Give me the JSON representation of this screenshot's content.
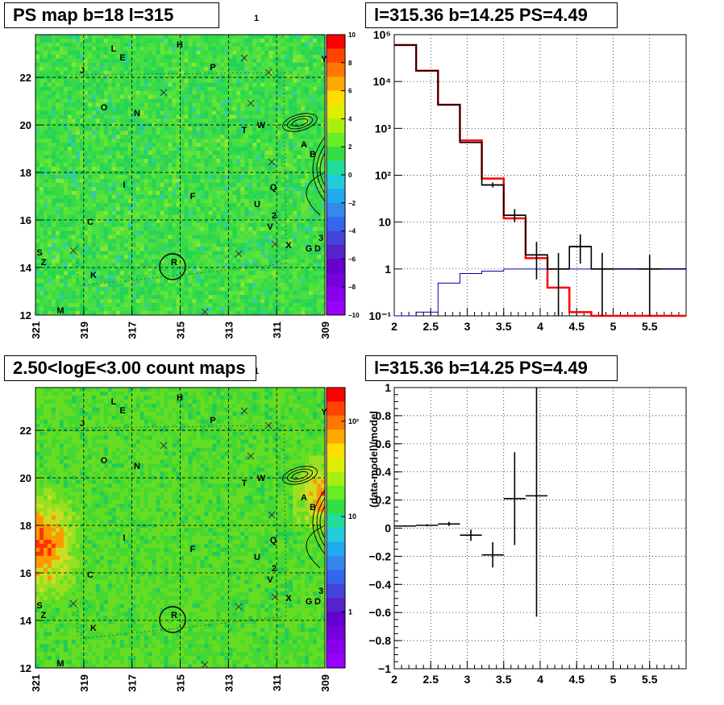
{
  "titles": {
    "top_left": "PS map b=18 l=315",
    "top_right": "l=315.36 b=14.25 PS=4.49",
    "bottom_left": "2.50<logE<3.00 count maps",
    "bottom_right": "l=315.36 b=14.25 PS=4.49"
  },
  "chart_data": [
    {
      "type": "heatmap",
      "name": "ps-map",
      "x_ticks": [
        "321",
        "319",
        "317",
        "315",
        "313",
        "311",
        "309"
      ],
      "y_ticks": [
        "12",
        "14",
        "16",
        "18",
        "20",
        "22"
      ],
      "xlim": [
        321,
        309
      ],
      "ylim": [
        12,
        23.8
      ],
      "colorbar": {
        "ticks": [
          "10",
          "8",
          "6",
          "4",
          "2",
          "0",
          "−2",
          "−4",
          "−6",
          "−8",
          "−10"
        ],
        "range": [
          -10,
          10
        ]
      },
      "labels": [
        "1",
        "H",
        "L",
        "E",
        "J",
        "P",
        "Y",
        "O",
        "N",
        "T",
        "W",
        "A",
        "B",
        "I",
        "F",
        "Q",
        "U",
        "2",
        "C",
        "V",
        "X",
        "3",
        "S",
        "Z",
        "G",
        "D",
        "R",
        "K",
        "M"
      ],
      "grid": true
    },
    {
      "type": "line",
      "name": "spectrum",
      "x_ticks": [
        "2",
        "2.5",
        "3",
        "3.5",
        "4",
        "4.5",
        "5",
        "5.5"
      ],
      "y_ticks": [
        "10⁻¹",
        "1",
        "10",
        "10²",
        "10³",
        "10⁴",
        "10⁵"
      ],
      "xlim": [
        2,
        6
      ],
      "ylim_log10": [
        -1,
        5
      ],
      "series": [
        {
          "color": "#ff0000",
          "edges": [
            2.0,
            2.3,
            2.6,
            2.9,
            3.2,
            3.5,
            3.8,
            4.1,
            4.4,
            4.7,
            5.0,
            6.0
          ],
          "values": [
            60000,
            17000,
            3200,
            550,
            85,
            12,
            1.7,
            0.4,
            0.12,
            0.1,
            0.1
          ]
        },
        {
          "color": "#000000",
          "edges": [
            2.0,
            2.3,
            2.6,
            2.9,
            3.2,
            3.5,
            3.8,
            4.1,
            4.4,
            4.7,
            5.0,
            6.0
          ],
          "values": [
            60000,
            17000,
            3200,
            500,
            62,
            14,
            2.0,
            1.0,
            3.0,
            1.0,
            1.0
          ]
        },
        {
          "color": "#0000aa",
          "edges": [
            2.0,
            2.3,
            2.6,
            2.9,
            3.2,
            3.5,
            3.8,
            4.1,
            4.4,
            4.7,
            5.0,
            6.0
          ],
          "values": [
            0.1,
            0.12,
            0.5,
            0.8,
            0.9,
            1.0,
            1.0,
            1.0,
            1.0,
            1.0,
            1.0
          ]
        }
      ],
      "error_points": [
        {
          "x": 3.35,
          "y": 62,
          "xerr": 0.15,
          "ylo": 55,
          "yhi": 70
        },
        {
          "x": 3.65,
          "y": 14,
          "xerr": 0.15,
          "ylo": 10,
          "yhi": 19
        },
        {
          "x": 3.95,
          "y": 2.0,
          "xerr": 0.15,
          "ylo": 0.6,
          "yhi": 3.8
        },
        {
          "x": 4.25,
          "y": 1.0,
          "xerr": 0.15,
          "ylo": 0.1,
          "yhi": 2.2
        },
        {
          "x": 4.55,
          "y": 3.0,
          "xerr": 0.15,
          "ylo": 1.3,
          "yhi": 5.5
        },
        {
          "x": 4.85,
          "y": 1.0,
          "xerr": 0.15,
          "ylo": 0.1,
          "yhi": 2.2
        },
        {
          "x": 5.5,
          "y": 1.0,
          "xerr": 0.15,
          "ylo": 0.1,
          "yhi": 2.0
        }
      ],
      "grid": true
    },
    {
      "type": "heatmap",
      "name": "count-map",
      "x_ticks": [
        "321",
        "319",
        "317",
        "315",
        "313",
        "311",
        "309"
      ],
      "y_ticks": [
        "12",
        "14",
        "16",
        "18",
        "20",
        "22"
      ],
      "xlim": [
        321,
        309
      ],
      "ylim": [
        12,
        23.8
      ],
      "colorbar": {
        "ticks": [
          "10²",
          "10",
          "1"
        ]
      },
      "labels": [
        "1",
        "H",
        "L",
        "E",
        "J",
        "P",
        "Y",
        "O",
        "N",
        "T",
        "W",
        "A",
        "B",
        "I",
        "F",
        "Q",
        "U",
        "2",
        "C",
        "V",
        "X",
        "3",
        "S",
        "Z",
        "G",
        "D",
        "R",
        "K",
        "M"
      ],
      "grid": true
    },
    {
      "type": "scatter",
      "name": "residual",
      "ylabel": "(data-model)/model",
      "x_ticks": [
        "2",
        "2.5",
        "3",
        "3.5",
        "4",
        "4.5",
        "5",
        "5.5"
      ],
      "y_ticks": [
        "1",
        "0.8",
        "0.6",
        "0.4",
        "0.2",
        "0",
        "−0.2",
        "−0.4",
        "−0.6",
        "−0.8",
        "−1"
      ],
      "xlim": [
        2,
        6
      ],
      "ylim": [
        -1,
        1
      ],
      "points": [
        {
          "x": 2.15,
          "y": 0.015,
          "xerr": 0.15,
          "yerr": 0.005
        },
        {
          "x": 2.45,
          "y": 0.02,
          "xerr": 0.15,
          "yerr": 0.008
        },
        {
          "x": 2.75,
          "y": 0.03,
          "xerr": 0.15,
          "yerr": 0.015
        },
        {
          "x": 3.05,
          "y": -0.05,
          "xerr": 0.15,
          "yerr": 0.04
        },
        {
          "x": 3.35,
          "y": -0.19,
          "xerr": 0.15,
          "yerr": 0.09
        },
        {
          "x": 3.65,
          "y": 0.21,
          "xerr": 0.15,
          "yerr": 0.33
        },
        {
          "x": 3.95,
          "y": 0.23,
          "xerr": 0.15,
          "yerr": 0.86
        }
      ],
      "grid": true
    }
  ]
}
